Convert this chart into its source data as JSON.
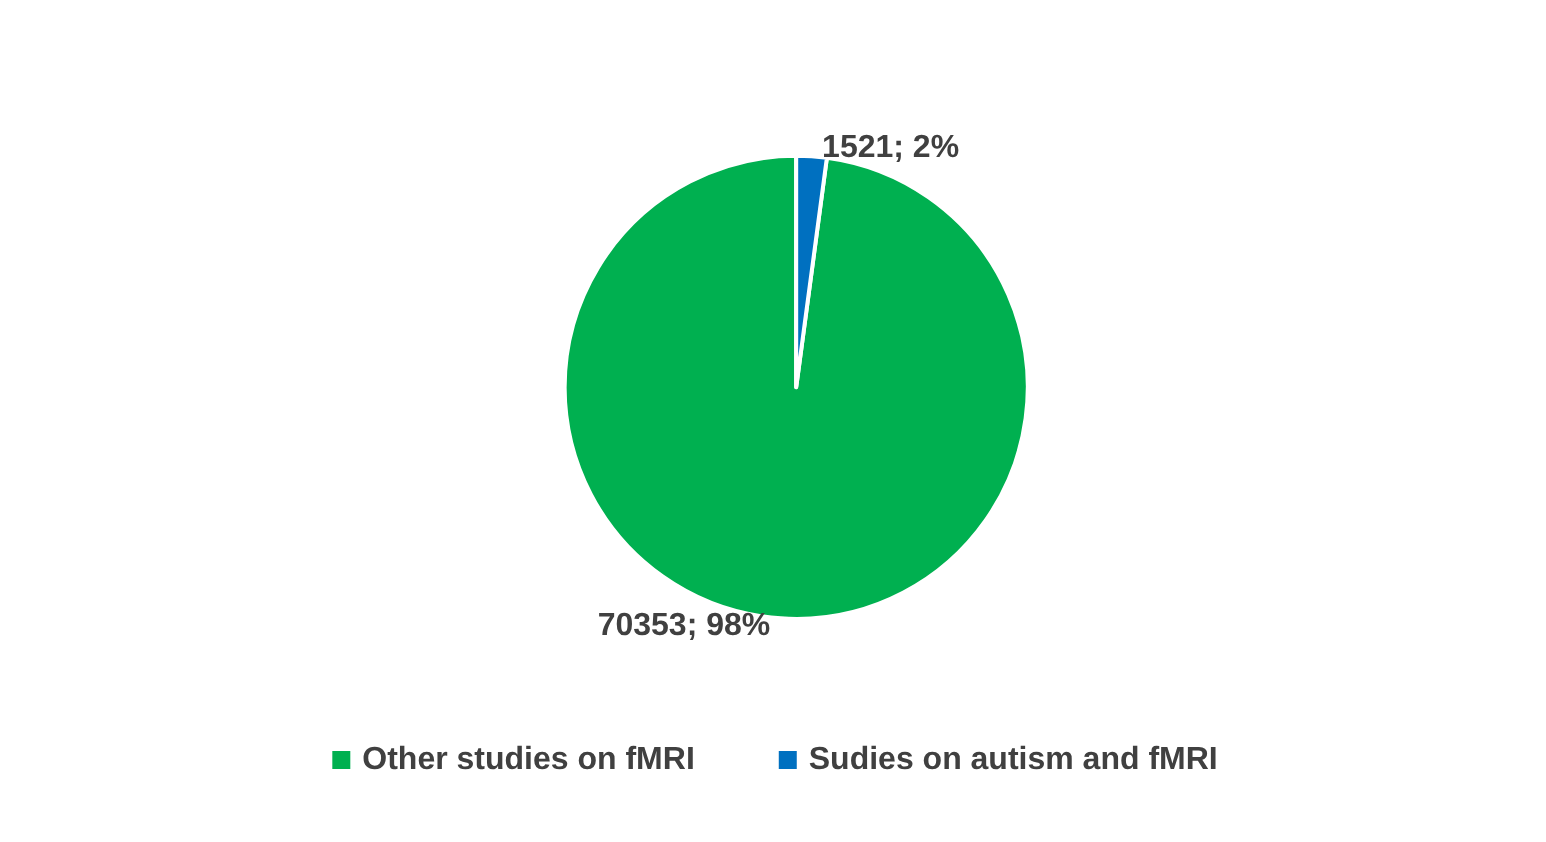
{
  "chart_data": {
    "type": "pie",
    "categories": [
      "Other studies on fMRI",
      "Sudies on autism and fMRI"
    ],
    "values": [
      70353,
      1521
    ],
    "colors": [
      "#00b050",
      "#0070c0"
    ],
    "value_labels": [
      "70353; 98%",
      "1521; 2%"
    ],
    "legend": "bottom"
  }
}
